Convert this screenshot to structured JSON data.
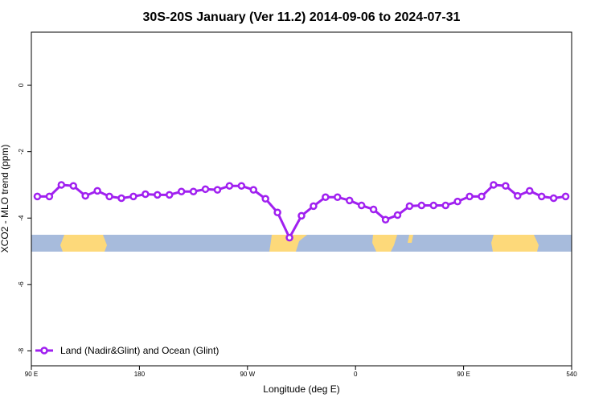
{
  "chart_data": {
    "type": "line",
    "title": "30S-20S January (Ver 11.2)   2014-09-06 to 2024-07-31",
    "x_label": "Longitude (deg E)",
    "y_label": "XCO2 - MLO trend (ppm)",
    "x": [
      95,
      105,
      115,
      125,
      135,
      145,
      155,
      165,
      175,
      185,
      195,
      205,
      215,
      225,
      235,
      245,
      255,
      265,
      275,
      285,
      295,
      305,
      315,
      325,
      335,
      345,
      355,
      365,
      375,
      385,
      395,
      405,
      415,
      425,
      435,
      445,
      455,
      465,
      475,
      485,
      495,
      505,
      515,
      525,
      535
    ],
    "series": [
      {
        "name": "Land (Nadir&Glint) and Ocean (Glint)",
        "color": "#a020f0",
        "values": [
          -3.35,
          -3.35,
          -3.0,
          -3.03,
          -3.33,
          -3.18,
          -3.35,
          -3.4,
          -3.35,
          -3.28,
          -3.3,
          -3.3,
          -3.2,
          -3.2,
          -3.13,
          -3.15,
          -3.03,
          -3.03,
          -3.15,
          -3.42,
          -3.83,
          -4.59,
          -3.93,
          -3.64,
          -3.37,
          -3.37,
          -3.47,
          -3.62,
          -3.74,
          -4.05,
          -3.91,
          -3.64,
          -3.62,
          -3.62,
          -3.62,
          -3.5,
          -3.35,
          -3.35,
          -3.0,
          -3.03,
          -3.33,
          -3.18,
          -3.35,
          -3.4,
          -3.35
        ]
      }
    ],
    "xlim": [
      90,
      540
    ],
    "xticks": [
      {
        "value": 90,
        "label": "90 E"
      },
      180,
      {
        "value": 270,
        "label": "90 W"
      },
      {
        "value": 360,
        "label": "0"
      },
      {
        "value": 450,
        "label": "90 E"
      },
      540
    ],
    "ylim": [
      -8.45,
      1.6
    ],
    "yticks": [
      0,
      -2,
      -4,
      -6,
      -8
    ],
    "legend": "bottom-left"
  }
}
